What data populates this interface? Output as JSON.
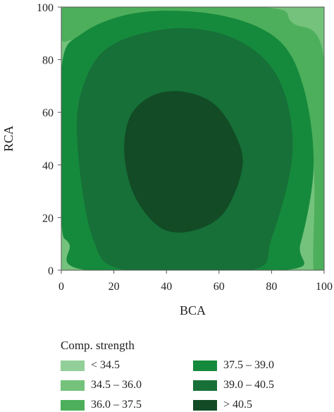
{
  "chart_data": {
    "type": "contour",
    "title": "",
    "xlabel": "BCA",
    "ylabel": "RCA",
    "xlim": [
      0,
      100
    ],
    "ylim": [
      0,
      100
    ],
    "xticks": [
      "0",
      "20",
      "40",
      "60",
      "80",
      "100"
    ],
    "yticks": [
      "0",
      "20",
      "40",
      "60",
      "80",
      "100"
    ],
    "grid": false,
    "legend_placement": "bottom",
    "legend_title": "Comp. strength",
    "levels": [
      {
        "label": "< 34.5",
        "range": [
          null,
          34.5
        ],
        "color": "#92cf98"
      },
      {
        "label": "34.5 – 36.0",
        "range": [
          34.5,
          36.0
        ],
        "color": "#74c27c"
      },
      {
        "label": "36.0 – 37.5",
        "range": [
          36.0,
          37.5
        ],
        "color": "#4daf5b"
      },
      {
        "label": "37.5 – 39.0",
        "range": [
          37.5,
          39.0
        ],
        "color": "#168a3c"
      },
      {
        "label": "39.0 – 40.5",
        "range": [
          39.0,
          40.5
        ],
        "color": "#167038"
      },
      {
        "label": "> 40.5",
        "range": [
          40.5,
          null
        ],
        "color": "#124b25"
      }
    ],
    "contours": [
      {
        "level": 34.5,
        "points": [
          [
            83,
            100
          ],
          [
            92,
            92
          ],
          [
            100,
            84
          ]
        ]
      },
      {
        "level": 36.0,
        "points": [
          [
            0,
            88
          ],
          [
            2,
            100
          ],
          [
            76,
            100
          ],
          [
            88,
            94
          ],
          [
            100,
            80
          ],
          [
            100,
            0
          ],
          [
            96,
            0
          ],
          [
            96,
            40
          ],
          [
            90,
            75
          ],
          [
            80,
            88
          ],
          [
            50,
            97
          ],
          [
            20,
            95
          ],
          [
            5,
            88
          ]
        ]
      },
      {
        "level": 37.5,
        "points": [
          [
            0,
            76
          ],
          [
            8,
            90
          ],
          [
            30,
            98
          ],
          [
            60,
            97
          ],
          [
            82,
            88
          ],
          [
            92,
            70
          ],
          [
            96,
            40
          ],
          [
            91,
            10
          ],
          [
            85,
            0
          ],
          [
            10,
            0
          ],
          [
            3,
            10
          ],
          [
            0,
            20
          ]
        ]
      },
      {
        "level": 39.0,
        "points": [
          [
            6,
            50
          ],
          [
            9,
            72
          ],
          [
            20,
            86
          ],
          [
            45,
            92
          ],
          [
            68,
            87
          ],
          [
            83,
            72
          ],
          [
            88,
            45
          ],
          [
            80,
            12
          ],
          [
            72,
            0
          ],
          [
            25,
            0
          ],
          [
            12,
            12
          ]
        ]
      },
      {
        "level": 40.5,
        "points": [
          [
            24,
            44
          ],
          [
            26,
            58
          ],
          [
            34,
            66
          ],
          [
            45,
            68
          ],
          [
            57,
            64
          ],
          [
            65,
            54
          ],
          [
            69,
            40
          ],
          [
            62,
            22
          ],
          [
            50,
            15
          ],
          [
            38,
            16
          ],
          [
            28,
            28
          ]
        ]
      }
    ]
  }
}
